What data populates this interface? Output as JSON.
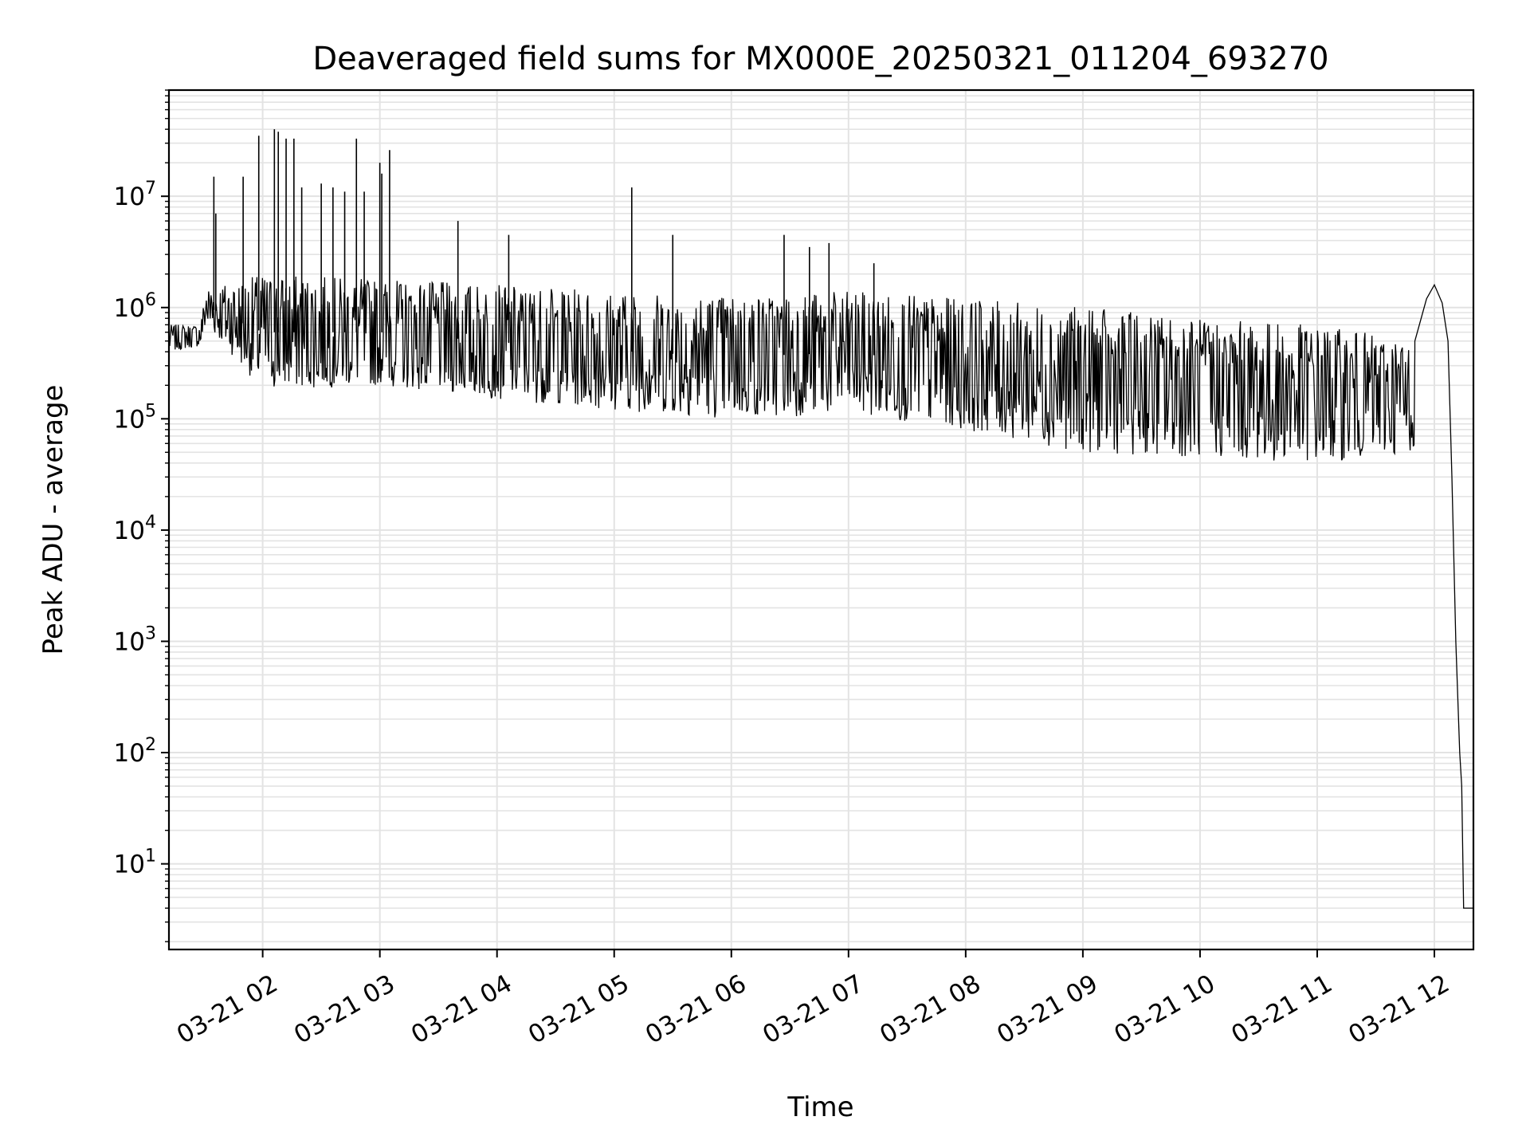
{
  "chart_data": {
    "type": "line",
    "title": "Deaveraged field sums for MX000E_20250321_011204_693270",
    "xlabel": "Time",
    "ylabel": "Peak ADU - average",
    "yscale": "log",
    "grid": true,
    "line_color": "#000000",
    "grid_color": "#e3e3e3",
    "xlim": [
      "2025-03-21 01:12",
      "2025-03-21 12:20"
    ],
    "ylim": [
      1.7,
      90000000
    ],
    "x_ticks": [
      {
        "time": "2025-03-21 02:00",
        "label": "03-21 02"
      },
      {
        "time": "2025-03-21 03:00",
        "label": "03-21 03"
      },
      {
        "time": "2025-03-21 04:00",
        "label": "03-21 04"
      },
      {
        "time": "2025-03-21 05:00",
        "label": "03-21 05"
      },
      {
        "time": "2025-03-21 06:00",
        "label": "03-21 06"
      },
      {
        "time": "2025-03-21 07:00",
        "label": "03-21 07"
      },
      {
        "time": "2025-03-21 08:00",
        "label": "03-21 08"
      },
      {
        "time": "2025-03-21 09:00",
        "label": "03-21 09"
      },
      {
        "time": "2025-03-21 10:00",
        "label": "03-21 10"
      },
      {
        "time": "2025-03-21 11:00",
        "label": "03-21 11"
      },
      {
        "time": "2025-03-21 12:00",
        "label": "03-21 12"
      }
    ],
    "y_ticks": [
      {
        "value": 10,
        "base": "10",
        "exp": "1"
      },
      {
        "value": 100,
        "base": "10",
        "exp": "2"
      },
      {
        "value": 1000,
        "base": "10",
        "exp": "3"
      },
      {
        "value": 10000,
        "base": "10",
        "exp": "4"
      },
      {
        "value": 100000,
        "base": "10",
        "exp": "5"
      },
      {
        "value": 1000000,
        "base": "10",
        "exp": "6"
      },
      {
        "value": 10000000,
        "base": "10",
        "exp": "7"
      }
    ],
    "series": [
      {
        "style": "noisy band",
        "envelope": [
          {
            "time": "2025-03-21 01:12",
            "low": 400000,
            "high": 700000
          },
          {
            "time": "2025-03-21 01:28",
            "low": 450000,
            "high": 700000
          },
          {
            "time": "2025-03-21 01:31",
            "low": 700000,
            "high": 1500000
          },
          {
            "time": "2025-03-21 02:00",
            "low": 180000,
            "high": 2000000
          },
          {
            "time": "2025-03-21 03:00",
            "low": 200000,
            "high": 1800000
          },
          {
            "time": "2025-03-21 04:00",
            "low": 150000,
            "high": 1600000
          },
          {
            "time": "2025-03-21 05:00",
            "low": 120000,
            "high": 1400000
          },
          {
            "time": "2025-03-21 06:00",
            "low": 100000,
            "high": 1300000
          },
          {
            "time": "2025-03-21 07:00",
            "low": 110000,
            "high": 1400000
          },
          {
            "time": "2025-03-21 08:00",
            "low": 80000,
            "high": 1200000
          },
          {
            "time": "2025-03-21 09:00",
            "low": 50000,
            "high": 1000000
          },
          {
            "time": "2025-03-21 10:00",
            "low": 45000,
            "high": 800000
          },
          {
            "time": "2025-03-21 11:00",
            "low": 40000,
            "high": 700000
          },
          {
            "time": "2025-03-21 11:50",
            "low": 50000,
            "high": 500000
          }
        ],
        "spikes": [
          {
            "time": "2025-03-21 01:35",
            "value": 15000000
          },
          {
            "time": "2025-03-21 01:36",
            "value": 7000000
          },
          {
            "time": "2025-03-21 01:50",
            "value": 15000000
          },
          {
            "time": "2025-03-21 01:58",
            "value": 35000000
          },
          {
            "time": "2025-03-21 02:06",
            "value": 40000000
          },
          {
            "time": "2025-03-21 02:08",
            "value": 38000000
          },
          {
            "time": "2025-03-21 02:12",
            "value": 33000000
          },
          {
            "time": "2025-03-21 02:16",
            "value": 33000000
          },
          {
            "time": "2025-03-21 02:20",
            "value": 12000000
          },
          {
            "time": "2025-03-21 02:30",
            "value": 13000000
          },
          {
            "time": "2025-03-21 02:36",
            "value": 12000000
          },
          {
            "time": "2025-03-21 02:42",
            "value": 11000000
          },
          {
            "time": "2025-03-21 02:48",
            "value": 33000000
          },
          {
            "time": "2025-03-21 02:52",
            "value": 11000000
          },
          {
            "time": "2025-03-21 03:00",
            "value": 20000000
          },
          {
            "time": "2025-03-21 03:01",
            "value": 16000000
          },
          {
            "time": "2025-03-21 03:05",
            "value": 26000000
          },
          {
            "time": "2025-03-21 03:40",
            "value": 6000000
          },
          {
            "time": "2025-03-21 04:06",
            "value": 4500000
          },
          {
            "time": "2025-03-21 05:09",
            "value": 12000000
          },
          {
            "time": "2025-03-21 05:30",
            "value": 4500000
          },
          {
            "time": "2025-03-21 06:27",
            "value": 4500000
          },
          {
            "time": "2025-03-21 06:40",
            "value": 3500000
          },
          {
            "time": "2025-03-21 06:50",
            "value": 3800000
          },
          {
            "time": "2025-03-21 07:13",
            "value": 2500000
          }
        ],
        "tail": [
          {
            "time": "2025-03-21 11:50",
            "value": 500000
          },
          {
            "time": "2025-03-21 11:56",
            "value": 1200000
          },
          {
            "time": "2025-03-21 12:00",
            "value": 1600000
          },
          {
            "time": "2025-03-21 12:04",
            "value": 1100000
          },
          {
            "time": "2025-03-21 12:07",
            "value": 500000
          },
          {
            "time": "2025-03-21 12:09",
            "value": 30000
          },
          {
            "time": "2025-03-21 12:11",
            "value": 1000
          },
          {
            "time": "2025-03-21 12:13",
            "value": 100
          },
          {
            "time": "2025-03-21 12:14",
            "value": 50
          },
          {
            "time": "2025-03-21 12:15",
            "value": 4
          },
          {
            "time": "2025-03-21 12:20",
            "value": 4
          }
        ]
      }
    ]
  }
}
